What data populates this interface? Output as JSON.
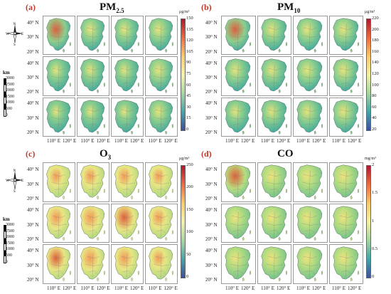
{
  "panels": [
    {
      "id": "a",
      "letter": "(a)",
      "title_main": "PM",
      "title_sub": "2.5",
      "unit": "μg/m³",
      "ticks": [
        "150",
        "135",
        "120",
        "105",
        "90",
        "75",
        "60",
        "45",
        "30",
        "15",
        "0"
      ],
      "colors": {
        "c1": "#3aa6a0",
        "c2": "#8fcf8c",
        "c3": "#e6e37a"
      },
      "hot": [
        0.85,
        0.4,
        0.35,
        0.45,
        0.2,
        0.25,
        0.2,
        0.5,
        0.1,
        0.1,
        0.1,
        0.4
      ]
    },
    {
      "id": "b",
      "letter": "(b)",
      "title_main": "PM",
      "title_sub": "10",
      "unit": "μg/m³",
      "ticks": [
        "220",
        "200",
        "180",
        "160",
        "140",
        "120",
        "100",
        "80",
        "60",
        "40",
        "20"
      ],
      "colors": {
        "c1": "#3aa6a0",
        "c2": "#8fcf8c",
        "c3": "#e6e37a"
      },
      "hot": [
        0.8,
        0.45,
        0.45,
        0.5,
        0.35,
        0.35,
        0.45,
        0.55,
        0.2,
        0.3,
        0.4,
        0.5
      ]
    },
    {
      "id": "c",
      "letter": "(c)",
      "title_main": "O",
      "title_sub": "3",
      "unit": "μg/m³",
      "ticks": [
        "250",
        "200",
        "150",
        "100",
        "50",
        "0"
      ],
      "colors": {
        "c1": "#a4d67f",
        "c2": "#e8e683",
        "c3": "#f29a55"
      },
      "hot": [
        0.35,
        0.4,
        0.45,
        0.35,
        0.55,
        0.7,
        0.9,
        0.45,
        0.75,
        0.7,
        0.6,
        0.35
      ]
    },
    {
      "id": "d",
      "letter": "(d)",
      "title_main": "CO",
      "title_sub": "",
      "unit": "mg/m³",
      "ticks": [
        "2",
        "1.5",
        "1",
        "0.5",
        "0"
      ],
      "colors": {
        "c1": "#6cbf8d",
        "c2": "#b8dd80",
        "c3": "#efe27c"
      },
      "hot": [
        0.9,
        0.3,
        0.3,
        0.35,
        0.25,
        0.3,
        0.3,
        0.35,
        0.25,
        0.3,
        0.3,
        0.35
      ]
    }
  ],
  "lat_labels": [
    "40° N",
    "30° N",
    "20° N"
  ],
  "lon_labels": [
    "110° E",
    "120° E"
  ],
  "compass": {
    "n": "N",
    "s": "S",
    "e": "E",
    "w": "W"
  },
  "scale": {
    "unit": "km",
    "ticks": [
      "3000",
      "2500",
      "2000",
      "1500",
      "1000",
      "500",
      "0"
    ]
  }
}
